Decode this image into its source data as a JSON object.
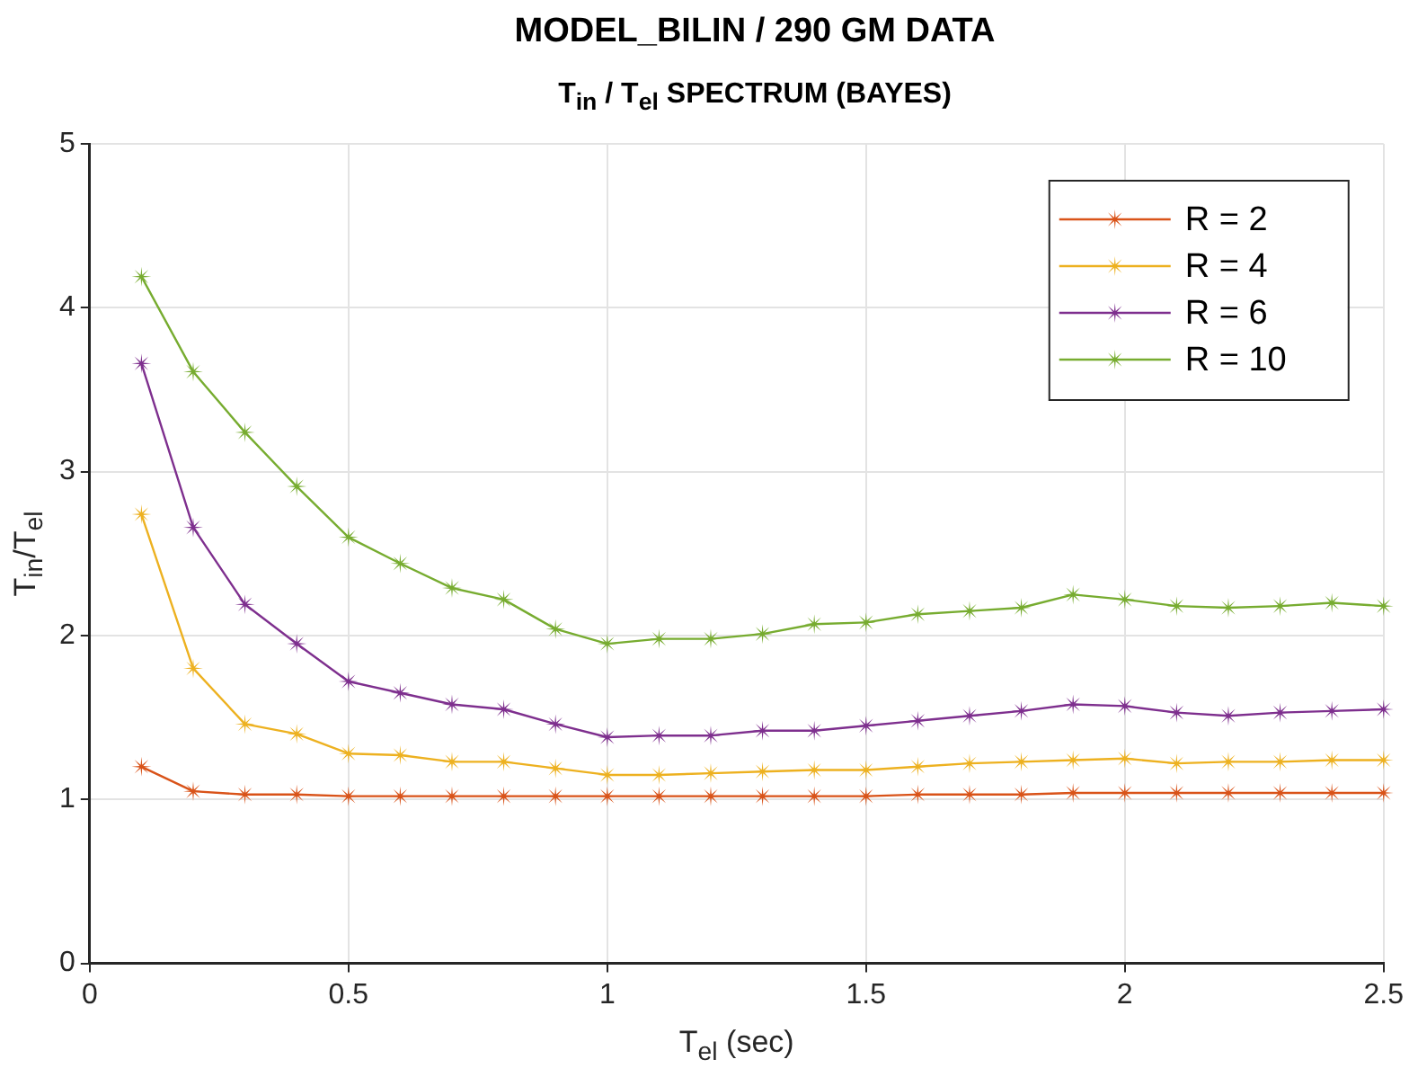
{
  "chart_data": {
    "type": "line",
    "title": "MODEL_BILIN / 290 GM DATA",
    "subtitle": "T$_{in}$ / T$_{el}$ SPECTRUM (BAYES)",
    "xlabel": "T$_{el}$ (sec)",
    "ylabel": "T$_{in}$/T$_{el}$",
    "x": [
      0.1,
      0.2,
      0.3,
      0.4,
      0.5,
      0.6,
      0.7,
      0.8,
      0.9,
      1.0,
      1.1,
      1.2,
      1.3,
      1.4,
      1.5,
      1.6,
      1.7,
      1.8,
      1.9,
      2.0,
      2.1,
      2.2,
      2.3,
      2.4,
      2.5
    ],
    "series": [
      {
        "name": "R = 2",
        "color": "#d95319",
        "values": [
          1.2,
          1.05,
          1.03,
          1.03,
          1.02,
          1.02,
          1.02,
          1.02,
          1.02,
          1.02,
          1.02,
          1.02,
          1.02,
          1.02,
          1.02,
          1.03,
          1.03,
          1.03,
          1.04,
          1.04,
          1.04,
          1.04,
          1.04,
          1.04,
          1.04
        ]
      },
      {
        "name": "R = 4",
        "color": "#edb120",
        "values": [
          2.74,
          1.8,
          1.46,
          1.4,
          1.28,
          1.27,
          1.23,
          1.23,
          1.19,
          1.15,
          1.15,
          1.16,
          1.17,
          1.18,
          1.18,
          1.2,
          1.22,
          1.23,
          1.24,
          1.25,
          1.22,
          1.23,
          1.23,
          1.24,
          1.24
        ]
      },
      {
        "name": "R = 6",
        "color": "#7e2f8e",
        "values": [
          3.66,
          2.66,
          2.19,
          1.95,
          1.72,
          1.65,
          1.58,
          1.55,
          1.46,
          1.38,
          1.39,
          1.39,
          1.42,
          1.42,
          1.45,
          1.48,
          1.51,
          1.54,
          1.58,
          1.57,
          1.53,
          1.51,
          1.53,
          1.54,
          1.55
        ]
      },
      {
        "name": "R = 10",
        "color": "#77ac30",
        "values": [
          4.19,
          3.61,
          3.24,
          2.91,
          2.6,
          2.44,
          2.29,
          2.22,
          2.04,
          1.95,
          1.98,
          1.98,
          2.01,
          2.07,
          2.08,
          2.13,
          2.15,
          2.17,
          2.25,
          2.22,
          2.18,
          2.17,
          2.18,
          2.2,
          2.18
        ]
      }
    ],
    "xlim": [
      0,
      2.5
    ],
    "xticks": [
      0,
      0.5,
      1,
      1.5,
      2,
      2.5
    ],
    "ylim": [
      0,
      5
    ],
    "yticks": [
      0,
      1,
      2,
      3,
      4,
      5
    ],
    "grid": true,
    "legend": "top right",
    "marker": "star",
    "line_style": "solid"
  }
}
